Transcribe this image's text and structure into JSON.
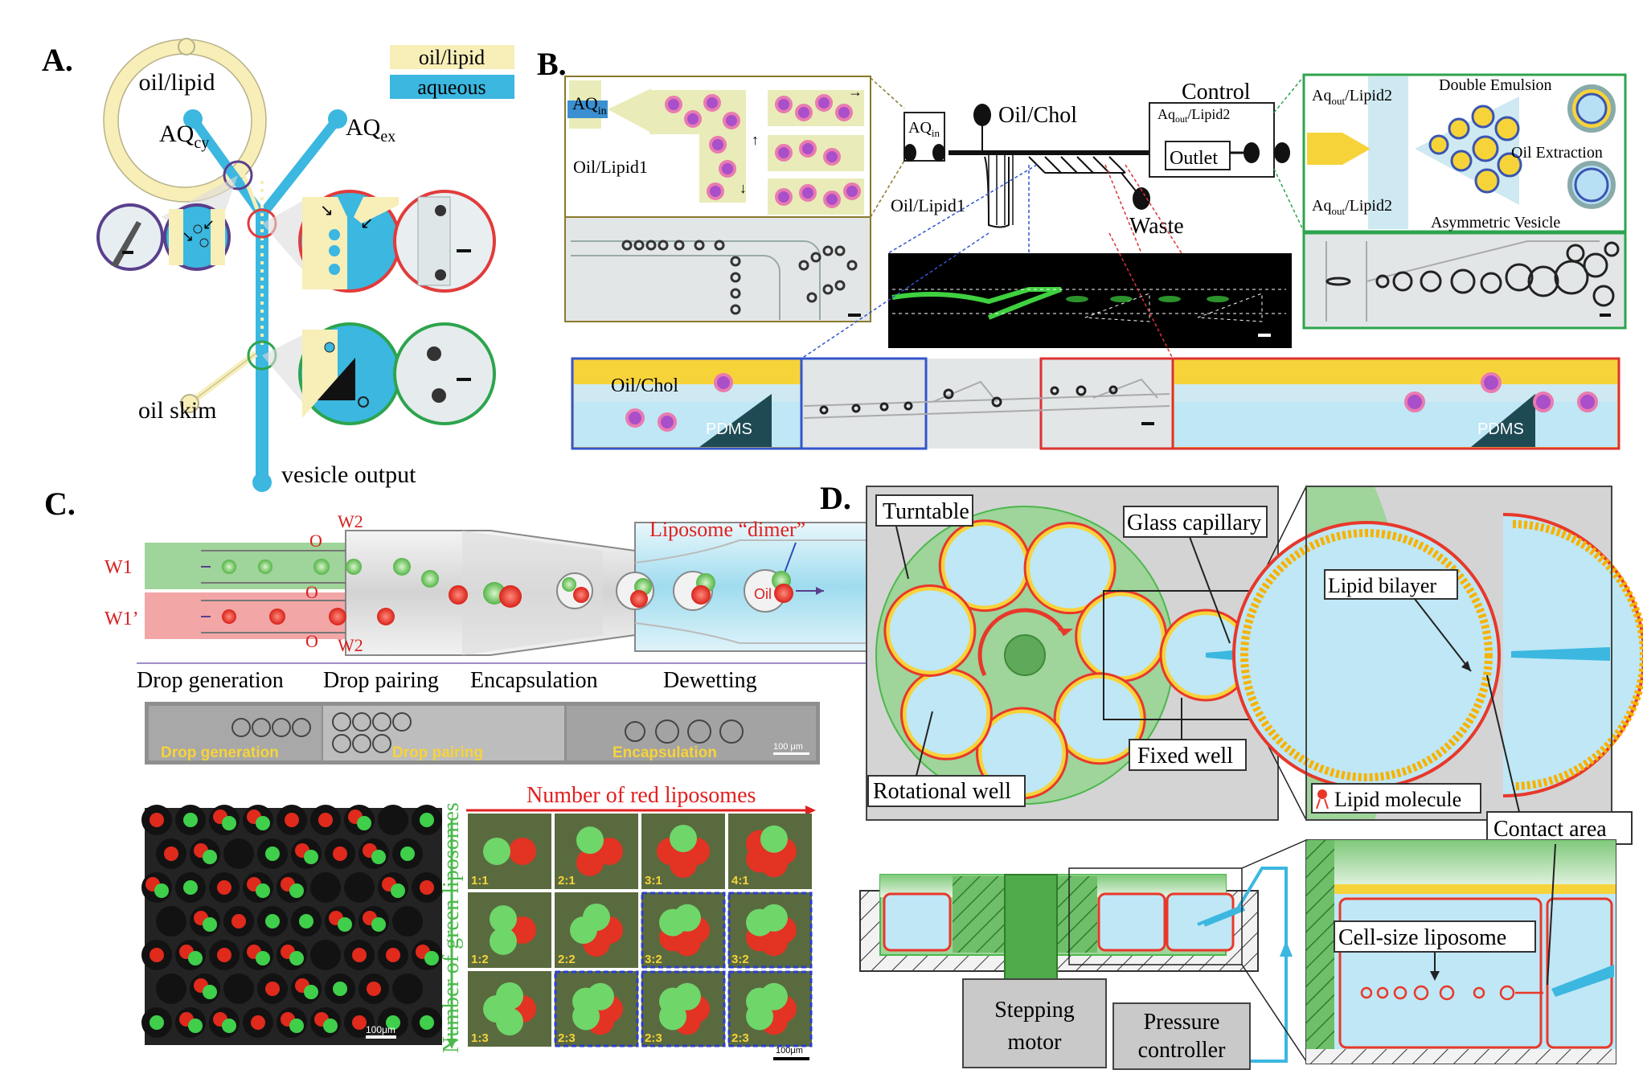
{
  "panels": {
    "a": {
      "letter": "A.",
      "legend_oil": "oil/lipid",
      "legend_aqueous": "aqueous",
      "label_oil_lipid": "oil/lipid",
      "label_aq_cy_main": "AQ",
      "label_aq_cy_sub": "cy",
      "label_aq_ex_main": "AQ",
      "label_aq_ex_sub": "ex",
      "label_oil_skim": "oil skim",
      "label_vesicle_output": "vesicle output"
    },
    "b": {
      "letter": "B.",
      "aq_in_main": "AQ",
      "aq_in_sub": "in",
      "oil_lipid1": "Oil/Lipid1",
      "chip_aq_in_main": "AQ",
      "chip_aq_in_sub": "in",
      "oil_chol": "Oil/Chol",
      "chip_oil_lipid1": "Oil/Lipid1",
      "control": "Control",
      "aq_out_lipid2_top_main": "Aq",
      "aq_out_lipid2_top_sub": "out",
      "aq_out_lipid2_top_tail": "/Lipid2",
      "outlet": "Outlet",
      "waste": "Waste",
      "aq_out_lipid2_main": "Aq",
      "aq_out_lipid2_sub": "out",
      "aq_out_lipid2_tail": "/Lipid2",
      "double_emulsion": "Double Emulsion",
      "oil_extraction": "Oil Extraction",
      "asymmetric_vesicle": "Asymmetric Vesicle",
      "bottom_oil_chol": "Oil/Chol",
      "pdms_left": "PDMS",
      "pdms_right": "PDMS"
    },
    "c": {
      "letter": "C.",
      "w1": "W1",
      "w1_prime": "W1’",
      "o_top": "O",
      "o_mid": "O",
      "o_bottom": "O",
      "w2_top": "W2",
      "w2_bottom": "W2",
      "liposome_dimer": "Liposome “dimer”",
      "oil": "Oil",
      "stage_drop_generation": "Drop generation",
      "stage_drop_pairing": "Drop pairing",
      "stage_encapsulation": "Encapsulation",
      "stage_dewetting": "Dewetting",
      "photo_drop_generation": "Drop generation",
      "photo_drop_pairing": "Drop pairing",
      "photo_encapsulation": "Encapsulation",
      "photo_scale": "100 μm",
      "fluor_scale": "100μm",
      "grid_scale": "100μm",
      "number_red": "Number of red liposomes",
      "number_green": "Number of green liposomes",
      "grid_ratios": [
        "1:1",
        "2:1",
        "3:1",
        "4:1",
        "1:2",
        "2:2",
        "3:2",
        "3:2",
        "1:3",
        "2:3",
        "2:3",
        "2:3"
      ]
    },
    "d": {
      "letter": "D.",
      "turntable": "Turntable",
      "glass_capillary": "Glass capillary",
      "rotational_well": "Rotational well",
      "fixed_well": "Fixed well",
      "lipid_bilayer": "Lipid bilayer",
      "lipid_molecule": "Lipid molecule",
      "contact_area": "Contact area",
      "cell_size_liposome": "Cell-size liposome",
      "stepping_motor_1": "Stepping",
      "stepping_motor_2": "motor",
      "pressure_controller_1": "Pressure",
      "pressure_controller_2": "controller"
    }
  },
  "colors": {
    "oil": "#f7eeb8",
    "aqueous": "#3bb7e0",
    "light_blue": "#bfe7f5",
    "green_panel": "#9fd49a",
    "red_ring": "#e8382a",
    "yellow": "#f7d33a",
    "navy": "#1e2d72"
  }
}
